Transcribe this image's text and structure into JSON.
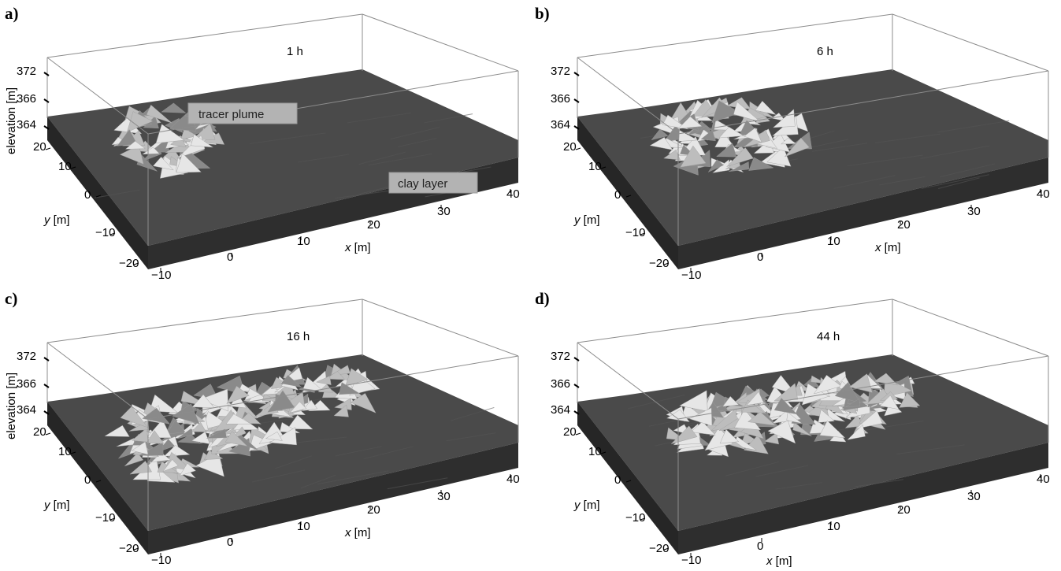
{
  "axes": {
    "elevation_label": "elevation [m]",
    "y_label_var": "y",
    "y_label_unit": " [m]",
    "x_label_var": "x",
    "x_label_unit": " [m]",
    "z_ticks": [
      "372",
      "366",
      "364"
    ],
    "y_ticks": [
      "20",
      "10",
      "0",
      "−10",
      "−20"
    ],
    "x_ticks": [
      "−10",
      "0",
      "10",
      "20",
      "30",
      "40"
    ]
  },
  "callouts": {
    "plume": "tracer plume",
    "clay": "clay layer"
  },
  "panels": [
    {
      "label": "a)",
      "time": "1 h",
      "show_elevation_label": true,
      "show_callouts": true
    },
    {
      "label": "b)",
      "time": "6 h",
      "show_elevation_label": false,
      "show_callouts": false
    },
    {
      "label": "c)",
      "time": "16 h",
      "show_elevation_label": true,
      "show_callouts": false
    },
    {
      "label": "d)",
      "time": "44 h",
      "show_elevation_label": false,
      "show_callouts": false
    }
  ],
  "colors": {
    "slab_top": "#4a4a4a",
    "slab_front": "#2e2e2e",
    "slab_side": "#262626",
    "plume_light": "#e6e6e6",
    "plume_mid": "#bdbdbd",
    "plume_dark": "#8a8a8a",
    "callout_bg": "#b3b3b3",
    "box_line": "#8c8c8c"
  }
}
